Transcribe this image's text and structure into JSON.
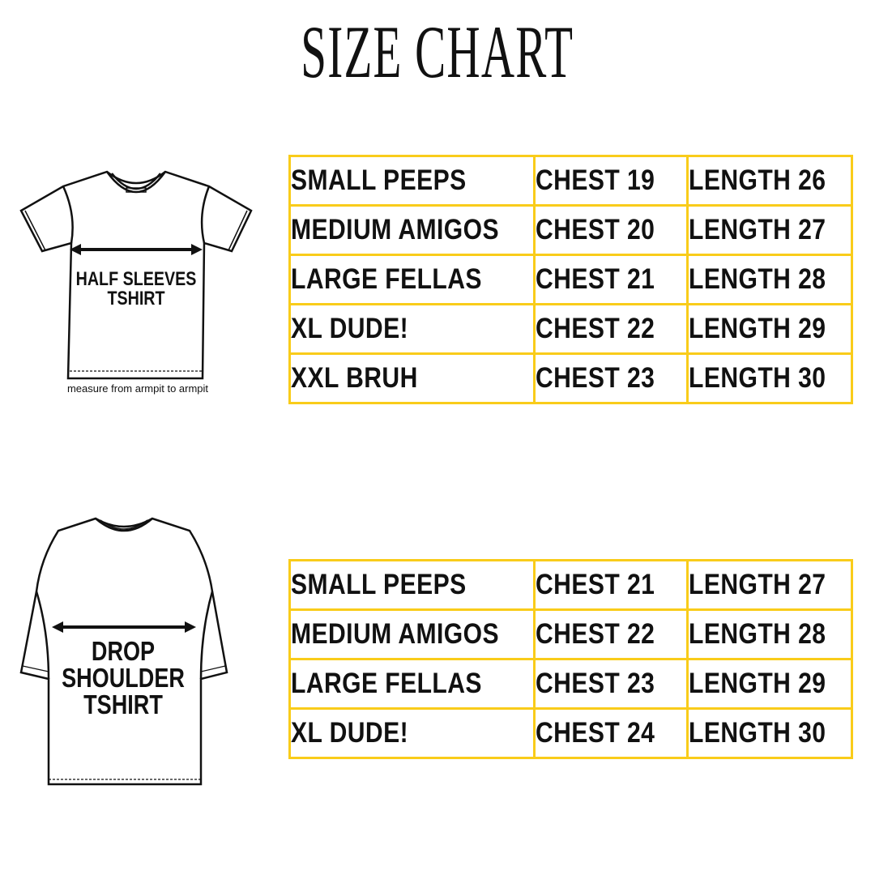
{
  "title": "SIZE CHART",
  "colors": {
    "table_border": "#f9cc1a",
    "text": "#111111"
  },
  "half_sleeves": {
    "label_line1": "HALF SLEEVES",
    "label_line2": "TSHIRT",
    "note": "measure from armpit to armpit",
    "rows": [
      {
        "size": "SMALL PEEPS",
        "chest": "CHEST 19",
        "length": "LENGTH 26"
      },
      {
        "size": "MEDIUM AMIGOS",
        "chest": "CHEST 20",
        "length": "LENGTH 27"
      },
      {
        "size": "LARGE FELLAS",
        "chest": "CHEST 21",
        "length": "LENGTH 28"
      },
      {
        "size": "XL DUDE!",
        "chest": "CHEST 22",
        "length": "LENGTH 29"
      },
      {
        "size": "XXL BRUH",
        "chest": "CHEST 23",
        "length": "LENGTH 30"
      }
    ]
  },
  "drop_shoulder": {
    "label_line1": "DROP",
    "label_line2": "SHOULDER",
    "label_line3": "TSHIRT",
    "rows": [
      {
        "size": "SMALL PEEPS",
        "chest": "CHEST 21",
        "length": "LENGTH 27"
      },
      {
        "size": "MEDIUM AMIGOS",
        "chest": "CHEST 22",
        "length": "LENGTH 28"
      },
      {
        "size": "LARGE FELLAS",
        "chest": "CHEST 23",
        "length": "LENGTH 29"
      },
      {
        "size": "XL DUDE!",
        "chest": "CHEST 24",
        "length": "LENGTH 30"
      }
    ]
  }
}
